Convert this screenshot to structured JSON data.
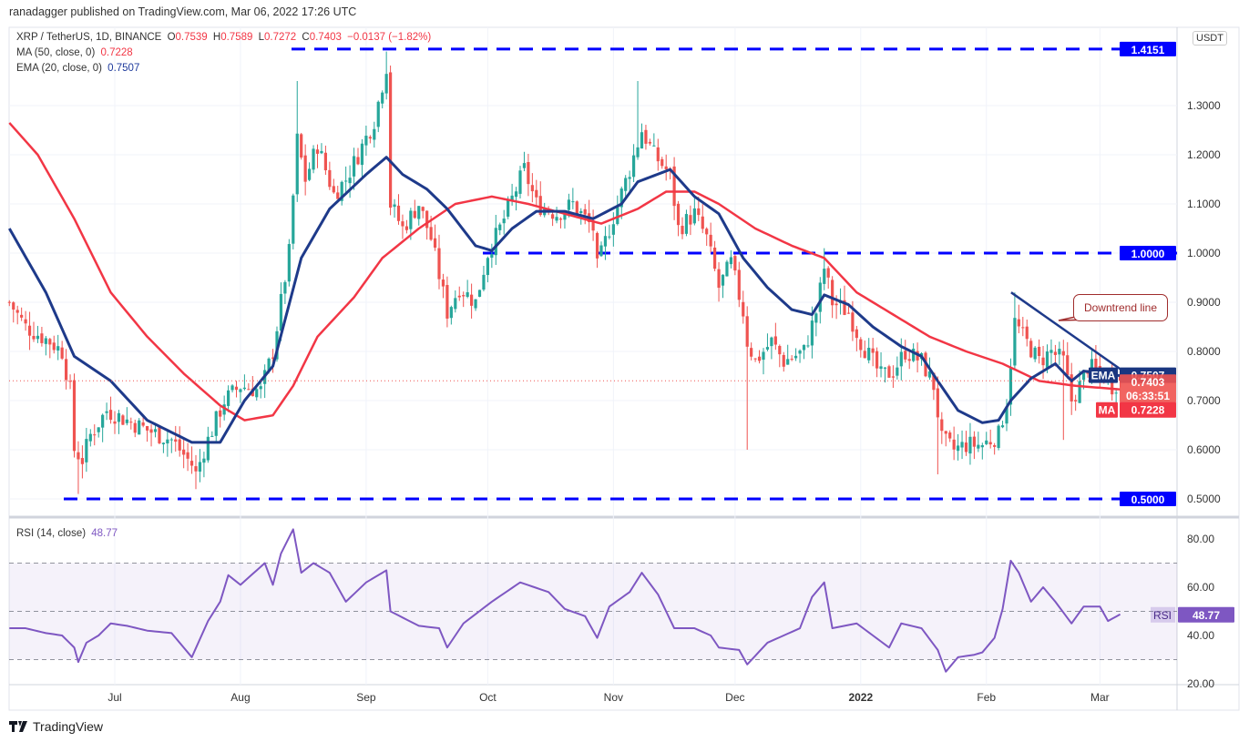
{
  "header": {
    "published": "ranadagger published on TradingView.com, Mar 06, 2022 17:26 UTC"
  },
  "legend": {
    "symbol": "XRP / TetherUS, 1D, BINANCE",
    "o_label": "O",
    "open": "0.7539",
    "h_label": "H",
    "high": "0.7589",
    "l_label": "L",
    "low": "0.7272",
    "c_label": "C",
    "close": "0.7403",
    "change": "−0.0137 (−1.82%)",
    "ma_label": "MA (50, close, 0)",
    "ma_value": "0.7228",
    "ema_label": "EMA (20, close, 0)",
    "ema_value": "0.7507",
    "rsi_label": "RSI (14, close)",
    "rsi_value": "48.77"
  },
  "axis": {
    "currency": "USDT",
    "price_ticks": [
      "1.3000",
      "1.2000",
      "1.1000",
      "1.0000",
      "0.9000",
      "0.8000",
      "0.7000",
      "0.6000",
      "0.5000"
    ],
    "rsi_ticks": [
      "80.00",
      "60.00",
      "40.00",
      "20.00"
    ],
    "date_ticks": [
      "Jul",
      "Aug",
      "Sep",
      "Oct",
      "Nov",
      "Dec",
      "2022",
      "Feb",
      "Mar"
    ]
  },
  "price_labels": {
    "level_high": "1.4151",
    "level_mid": "1.0000",
    "level_low": "0.5000",
    "ema_tag": "EMA",
    "ema": "0.7507",
    "last": "0.7403",
    "countdown": "06:33:51",
    "ma_tag": "MA",
    "ma": "0.7228",
    "rsi_tag": "RSI",
    "rsi": "48.77"
  },
  "annotation": {
    "text": "Downtrend line"
  },
  "branding": {
    "name": "TradingView"
  },
  "colors": {
    "up": "#26a69a",
    "down": "#ef5350",
    "ma": "#f23645",
    "ema": "#1e3a8a",
    "level": "#0000ff",
    "rsi": "#7e57c2"
  },
  "chart_data": {
    "type": "candlestick",
    "title": "XRP / TetherUS, 1D, BINANCE",
    "x_unit": "days since 2021-06-01",
    "ylim": [
      0.47,
      1.45
    ],
    "levels": [
      1.4151,
      1.0,
      0.5
    ],
    "close": [
      [
        4,
        0.9
      ],
      [
        8,
        0.85
      ],
      [
        14,
        0.82
      ],
      [
        17,
        0.8
      ],
      [
        19,
        0.72
      ],
      [
        20,
        0.6
      ],
      [
        22,
        0.58
      ],
      [
        24,
        0.63
      ],
      [
        28,
        0.68
      ],
      [
        33,
        0.66
      ],
      [
        38,
        0.64
      ],
      [
        44,
        0.62
      ],
      [
        49,
        0.57
      ],
      [
        50,
        0.55
      ],
      [
        52,
        0.6
      ],
      [
        57,
        0.7
      ],
      [
        61,
        0.73
      ],
      [
        66,
        0.72
      ],
      [
        69,
        0.8
      ],
      [
        73,
        1.0
      ],
      [
        75,
        1.23
      ],
      [
        77,
        1.15
      ],
      [
        80,
        1.22
      ],
      [
        84,
        1.12
      ],
      [
        87,
        1.15
      ],
      [
        90,
        1.2
      ],
      [
        94,
        1.27
      ],
      [
        97,
        1.38
      ],
      [
        98,
        1.1
      ],
      [
        101,
        1.05
      ],
      [
        105,
        1.1
      ],
      [
        108,
        1.03
      ],
      [
        112,
        0.88
      ],
      [
        115,
        0.93
      ],
      [
        119,
        0.9
      ],
      [
        122,
        1.0
      ],
      [
        125,
        1.05
      ],
      [
        131,
        1.17
      ],
      [
        134,
        1.1
      ],
      [
        139,
        1.08
      ],
      [
        143,
        1.1
      ],
      [
        148,
        1.05
      ],
      [
        149,
        0.97
      ],
      [
        152,
        1.05
      ],
      [
        157,
        1.17
      ],
      [
        160,
        1.25
      ],
      [
        163,
        1.2
      ],
      [
        167,
        1.16
      ],
      [
        169,
        1.05
      ],
      [
        173,
        1.08
      ],
      [
        176,
        1.03
      ],
      [
        179,
        0.93
      ],
      [
        182,
        0.98
      ],
      [
        185,
        0.88
      ],
      [
        186,
        0.82
      ],
      [
        188,
        0.78
      ],
      [
        192,
        0.82
      ],
      [
        195,
        0.78
      ],
      [
        200,
        0.8
      ],
      [
        203,
        0.88
      ],
      [
        205,
        0.97
      ],
      [
        207,
        0.9
      ],
      [
        211,
        0.88
      ],
      [
        214,
        0.82
      ],
      [
        219,
        0.75
      ],
      [
        222,
        0.76
      ],
      [
        225,
        0.8
      ],
      [
        229,
        0.78
      ],
      [
        232,
        0.73
      ],
      [
        234,
        0.62
      ],
      [
        237,
        0.6
      ],
      [
        240,
        0.61
      ],
      [
        244,
        0.61
      ],
      [
        248,
        0.63
      ],
      [
        250,
        0.7
      ],
      [
        252,
        0.86
      ],
      [
        254,
        0.83
      ],
      [
        258,
        0.78
      ],
      [
        261,
        0.8
      ],
      [
        264,
        0.78
      ],
      [
        266,
        0.7
      ],
      [
        268,
        0.73
      ],
      [
        270,
        0.77
      ],
      [
        274,
        0.75
      ],
      [
        276,
        0.73
      ],
      [
        278,
        0.7403
      ]
    ],
    "extremes": [
      [
        21,
        0.51,
        "low"
      ],
      [
        50,
        0.52,
        "low"
      ],
      [
        75,
        1.35,
        "high"
      ],
      [
        97,
        1.41,
        "high"
      ],
      [
        159,
        1.35,
        "high"
      ],
      [
        186,
        0.6,
        "low"
      ],
      [
        233,
        0.55,
        "low"
      ],
      [
        264,
        0.62,
        "low"
      ],
      [
        205,
        1.01,
        "high"
      ],
      [
        252,
        0.92,
        "high"
      ]
    ],
    "ema20": [
      [
        4,
        1.05
      ],
      [
        13,
        0.92
      ],
      [
        20,
        0.79
      ],
      [
        29,
        0.74
      ],
      [
        38,
        0.66
      ],
      [
        49,
        0.615
      ],
      [
        56,
        0.615
      ],
      [
        62,
        0.7
      ],
      [
        69,
        0.77
      ],
      [
        76,
        0.99
      ],
      [
        83,
        1.09
      ],
      [
        92,
        1.16
      ],
      [
        97,
        1.195
      ],
      [
        101,
        1.16
      ],
      [
        107,
        1.13
      ],
      [
        112,
        1.09
      ],
      [
        119,
        1.015
      ],
      [
        123,
        1.005
      ],
      [
        128,
        1.05
      ],
      [
        134,
        1.085
      ],
      [
        141,
        1.085
      ],
      [
        148,
        1.07
      ],
      [
        155,
        1.1
      ],
      [
        159,
        1.145
      ],
      [
        167,
        1.17
      ],
      [
        173,
        1.115
      ],
      [
        179,
        1.08
      ],
      [
        185,
        0.99
      ],
      [
        191,
        0.93
      ],
      [
        197,
        0.885
      ],
      [
        202,
        0.875
      ],
      [
        205,
        0.915
      ],
      [
        211,
        0.895
      ],
      [
        217,
        0.85
      ],
      [
        224,
        0.81
      ],
      [
        229,
        0.79
      ],
      [
        233,
        0.74
      ],
      [
        238,
        0.68
      ],
      [
        244,
        0.655
      ],
      [
        248,
        0.66
      ],
      [
        251,
        0.7
      ],
      [
        256,
        0.745
      ],
      [
        262,
        0.775
      ],
      [
        266,
        0.74
      ],
      [
        269,
        0.76
      ],
      [
        278,
        0.7507
      ]
    ],
    "ma50": [
      [
        4,
        1.265
      ],
      [
        11,
        1.2
      ],
      [
        20,
        1.07
      ],
      [
        29,
        0.92
      ],
      [
        38,
        0.83
      ],
      [
        47,
        0.755
      ],
      [
        56,
        0.69
      ],
      [
        62,
        0.66
      ],
      [
        69,
        0.67
      ],
      [
        74,
        0.73
      ],
      [
        80,
        0.83
      ],
      [
        89,
        0.91
      ],
      [
        96,
        0.99
      ],
      [
        105,
        1.05
      ],
      [
        114,
        1.1
      ],
      [
        123,
        1.115
      ],
      [
        132,
        1.1
      ],
      [
        141,
        1.08
      ],
      [
        150,
        1.06
      ],
      [
        159,
        1.09
      ],
      [
        166,
        1.125
      ],
      [
        173,
        1.125
      ],
      [
        179,
        1.1
      ],
      [
        188,
        1.05
      ],
      [
        197,
        1.015
      ],
      [
        205,
        0.99
      ],
      [
        213,
        0.92
      ],
      [
        222,
        0.875
      ],
      [
        231,
        0.83
      ],
      [
        240,
        0.8
      ],
      [
        249,
        0.775
      ],
      [
        258,
        0.74
      ],
      [
        267,
        0.73
      ],
      [
        278,
        0.7228
      ]
    ],
    "rsi14": [
      [
        4,
        43
      ],
      [
        8,
        43
      ],
      [
        13,
        41
      ],
      [
        17,
        40
      ],
      [
        20,
        35
      ],
      [
        21,
        29
      ],
      [
        23,
        37
      ],
      [
        26,
        40
      ],
      [
        29,
        45
      ],
      [
        33,
        44
      ],
      [
        38,
        42
      ],
      [
        44,
        41
      ],
      [
        49,
        31
      ],
      [
        53,
        46
      ],
      [
        56,
        54
      ],
      [
        58,
        65
      ],
      [
        61,
        61
      ],
      [
        65,
        67
      ],
      [
        67,
        70
      ],
      [
        69,
        61
      ],
      [
        71,
        74
      ],
      [
        74,
        84
      ],
      [
        76,
        66
      ],
      [
        79,
        70
      ],
      [
        83,
        66
      ],
      [
        87,
        54
      ],
      [
        92,
        62
      ],
      [
        95,
        65
      ],
      [
        97,
        67
      ],
      [
        98,
        50
      ],
      [
        105,
        44
      ],
      [
        110,
        43
      ],
      [
        112,
        35
      ],
      [
        116,
        45
      ],
      [
        123,
        54
      ],
      [
        130,
        62
      ],
      [
        137,
        58
      ],
      [
        141,
        51
      ],
      [
        146,
        48
      ],
      [
        149,
        39
      ],
      [
        152,
        52
      ],
      [
        157,
        58
      ],
      [
        160,
        66
      ],
      [
        164,
        57
      ],
      [
        168,
        43
      ],
      [
        173,
        43
      ],
      [
        177,
        40
      ],
      [
        179,
        35
      ],
      [
        184,
        34
      ],
      [
        186,
        28
      ],
      [
        191,
        37
      ],
      [
        195,
        40
      ],
      [
        199,
        43
      ],
      [
        202,
        56
      ],
      [
        205,
        62
      ],
      [
        207,
        43
      ],
      [
        213,
        45
      ],
      [
        217,
        40
      ],
      [
        221,
        35
      ],
      [
        224,
        45
      ],
      [
        229,
        43
      ],
      [
        233,
        34
      ],
      [
        235,
        25
      ],
      [
        238,
        31
      ],
      [
        242,
        32
      ],
      [
        244,
        33
      ],
      [
        247,
        39
      ],
      [
        249,
        51
      ],
      [
        251,
        71
      ],
      [
        253,
        66
      ],
      [
        256,
        54
      ],
      [
        259,
        60
      ],
      [
        262,
        54
      ],
      [
        266,
        45
      ],
      [
        269,
        52
      ],
      [
        273,
        52
      ],
      [
        275,
        46
      ],
      [
        278,
        48.77
      ]
    ],
    "rsi_bands": [
      70,
      50,
      30
    ],
    "trendline": {
      "from": [
        252,
        0.92
      ],
      "to": [
        280,
        0.75
      ]
    }
  }
}
